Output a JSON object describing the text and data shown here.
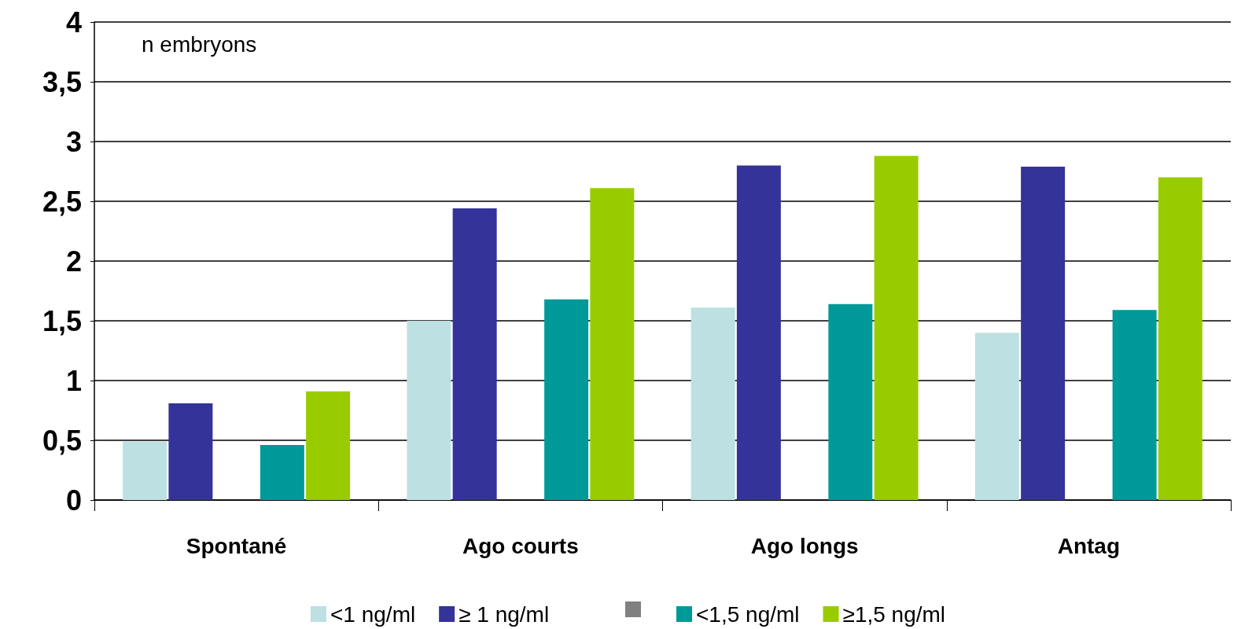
{
  "chart_data": {
    "type": "bar",
    "categories": [
      "Spontané",
      "Ago courts",
      "Ago longs",
      "Antag"
    ],
    "series": [
      {
        "name": "<1 ng/ml",
        "color": "#bde0e2",
        "values": [
          0.49,
          1.5,
          1.61,
          1.4
        ]
      },
      {
        "name": "≥ 1 ng/ml",
        "color": "#333399",
        "values": [
          0.81,
          2.44,
          2.8,
          2.79
        ]
      },
      {
        "color": "#808080",
        "values": [
          null,
          null,
          null,
          null
        ]
      },
      {
        "name": "<1,5 ng/ml",
        "color": "#009999",
        "values": [
          0.46,
          1.68,
          1.64,
          1.59
        ]
      },
      {
        "name": "≥1,5 ng/ml",
        "color": "#99cc00",
        "values": [
          0.91,
          2.61,
          2.88,
          2.7
        ]
      }
    ],
    "ylim": [
      0,
      4
    ],
    "yticks": [
      0,
      {
        "value": 0.5,
        "label": "0,5"
      },
      1,
      {
        "value": 1.5,
        "label": "1,5"
      },
      2,
      {
        "value": 2.5,
        "label": "2,5"
      },
      3,
      {
        "value": 3.5,
        "label": "3,5"
      },
      4
    ],
    "grid": "y",
    "legend": "bottom",
    "annotations": [
      "n embryons"
    ]
  }
}
